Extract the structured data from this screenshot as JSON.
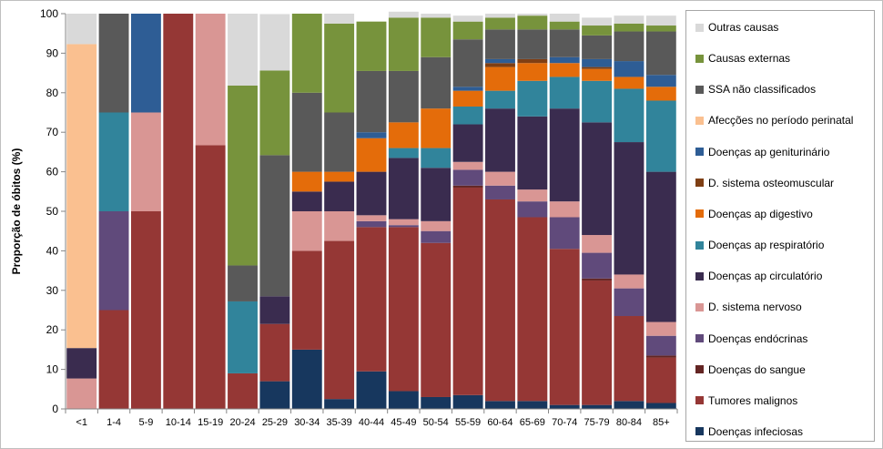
{
  "chart_data": {
    "type": "bar",
    "stacked": true,
    "ylabel": "Proporção de óbitos (%)",
    "ylim": [
      0,
      100
    ],
    "yticks": [
      0,
      10,
      20,
      30,
      40,
      50,
      60,
      70,
      80,
      90,
      100
    ],
    "grid": false,
    "legend_position": "right",
    "categories": [
      "<1",
      "1-4",
      "5-9",
      "10-14",
      "15-19",
      "20-24",
      "25-29",
      "30-34",
      "35-39",
      "40-44",
      "45-49",
      "50-54",
      "55-59",
      "60-64",
      "65-69",
      "70-74",
      "75-79",
      "80-84",
      "85+"
    ],
    "series": [
      {
        "name": "Doenças infeciosas",
        "color": "#17375e",
        "values": [
          0,
          0,
          0,
          0,
          0,
          0,
          7,
          15,
          2.5,
          9.5,
          4.5,
          3,
          3.5,
          2,
          2,
          1,
          1,
          2,
          1.5
        ]
      },
      {
        "name": "Tumores malignos",
        "color": "#953735",
        "values": [
          0,
          25,
          50,
          100,
          66.7,
          9,
          14.5,
          25,
          40,
          36.5,
          41.5,
          39,
          52.5,
          51,
          46.5,
          39.5,
          31.5,
          21.5,
          11.5
        ]
      },
      {
        "name": "Doenças do sangue",
        "color": "#632523",
        "values": [
          0,
          0,
          0,
          0,
          0,
          0,
          0,
          0,
          0,
          0,
          0,
          0,
          0.5,
          0,
          0,
          0,
          0.5,
          0,
          0.5
        ]
      },
      {
        "name": "Doenças endócrinas",
        "color": "#604a7b",
        "values": [
          0,
          25,
          0,
          0,
          0,
          0,
          0,
          0,
          0,
          1.5,
          0.5,
          3,
          4,
          3.5,
          4,
          8,
          6.5,
          7,
          5
        ]
      },
      {
        "name": "D. sistema nervoso",
        "color": "#d99694",
        "values": [
          7.7,
          0,
          25,
          0,
          33.3,
          0,
          0,
          10,
          7.5,
          1.5,
          1.5,
          2.5,
          2,
          3.5,
          3,
          4,
          4.5,
          3.5,
          3.5
        ]
      },
      {
        "name": "Doenças ap circulatório",
        "color": "#3a2c4f",
        "values": [
          7.7,
          0,
          0,
          0,
          0,
          0,
          7,
          5,
          7.5,
          11,
          15.5,
          13.5,
          9.5,
          16,
          18.5,
          23.5,
          28.5,
          33.5,
          38
        ]
      },
      {
        "name": "Doenças ap respiratório",
        "color": "#31849b",
        "values": [
          0,
          25,
          0,
          0,
          0,
          18.2,
          0,
          0,
          0,
          0,
          2.5,
          5,
          4.5,
          4.5,
          9,
          8,
          10.5,
          13.5,
          18
        ]
      },
      {
        "name": "Doenças ap digestivo",
        "color": "#e46c0a",
        "values": [
          0,
          0,
          0,
          0,
          0,
          0,
          0,
          5,
          2.5,
          8.5,
          6.5,
          10,
          4,
          6,
          4.5,
          3.5,
          3,
          3,
          3.5
        ]
      },
      {
        "name": "D. sistema osteomuscular",
        "color": "#7f3f14",
        "values": [
          0,
          0,
          0,
          0,
          0,
          0,
          0,
          0,
          0,
          0,
          0,
          0,
          0,
          1,
          1,
          0,
          0.5,
          0,
          0
        ]
      },
      {
        "name": "Doenças ap geniturinário",
        "color": "#2e5d95",
        "values": [
          0,
          0,
          25,
          0,
          0,
          0,
          0,
          0,
          0,
          1.5,
          0,
          0,
          1,
          1,
          0,
          1.5,
          2,
          4,
          3
        ]
      },
      {
        "name": "Afecções no período perinatal",
        "color": "#fac090",
        "values": [
          76.9,
          0,
          0,
          0,
          0,
          0,
          0,
          0,
          0,
          0,
          0,
          0,
          0,
          0,
          0,
          0,
          0,
          0,
          0
        ]
      },
      {
        "name": "SSA não classificados",
        "color": "#595959",
        "values": [
          0,
          25,
          0,
          0,
          0,
          9.1,
          35.7,
          20,
          15,
          15.5,
          13,
          13,
          12,
          7.5,
          7.5,
          7,
          6,
          7.5,
          11
        ]
      },
      {
        "name": "Causas externas",
        "color": "#77933c",
        "values": [
          0,
          0,
          0,
          0,
          0,
          45.5,
          21.4,
          20,
          22.5,
          12.5,
          13.5,
          10,
          4.5,
          3,
          3.5,
          2,
          2.5,
          2,
          1.5
        ]
      },
      {
        "name": "Outras causas",
        "color": "#d9d9d9",
        "values": [
          7.7,
          0,
          0,
          0,
          0,
          18.2,
          14.3,
          0,
          2.5,
          0,
          1.5,
          1,
          1.5,
          1,
          0.5,
          2,
          2,
          2,
          2.5
        ]
      }
    ]
  }
}
